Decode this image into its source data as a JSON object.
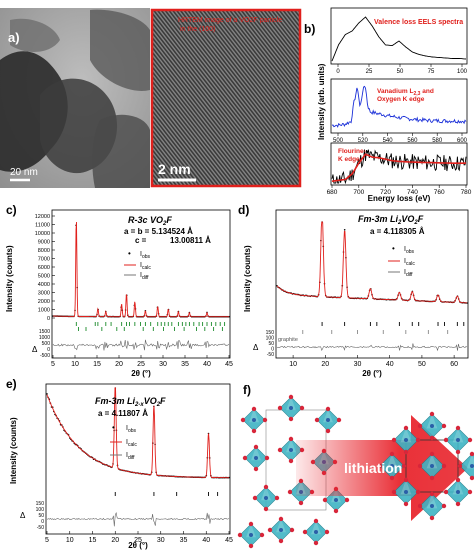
{
  "panel_labels": {
    "a": "a)",
    "b": "b)",
    "c": "c)",
    "d": "d)",
    "e": "e)",
    "f": "f)"
  },
  "panel_a": {
    "scalebar_left": "20 nm",
    "scalebar_right": "2 nm",
    "hrtem_caption_line1": "HRTEM image of a VO2F particle",
    "hrtem_caption_line2": "in the (100)",
    "colors": {
      "inset_border": "#e0201c"
    }
  },
  "panel_b": {
    "ylabel": "Intensity (arb. units)",
    "xlabel": "Energy loss (eV)",
    "xticks": [
      "680",
      "700",
      "720",
      "740",
      "760",
      "780"
    ],
    "top": {
      "xticks": [
        "0",
        "25",
        "50",
        "75",
        "100"
      ],
      "label": "Valence loss EELS spectra",
      "color": "#000000",
      "label_color": "#e0201c"
    },
    "mid": {
      "xticks": [
        "500",
        "520",
        "540",
        "560",
        "580",
        "600"
      ],
      "label_line1": "Vanadium L",
      "label_sub": "2,3",
      "label_line2": " and",
      "label_line3": "Oxygen K edge",
      "color": "#1a2fd8",
      "label_color": "#e0201c"
    },
    "bottom": {
      "label_line1": "Flourine-",
      "label_line2": "K edge",
      "color": "#000000",
      "fit_color": "#e0201c"
    }
  },
  "panel_c": {
    "phase": "R-3c VO",
    "phase_sub": "2",
    "phase_tail": "F",
    "lattice_a": "a = b = 5.134524 Å",
    "lattice_c_label": "c =",
    "lattice_c": "13.00811 Å",
    "legend": [
      "I",
      "I",
      "I"
    ],
    "legend_subs": [
      "obs",
      "calc",
      "diff"
    ],
    "ylabel": "Intensity (counts)",
    "xlabel": "2θ (°)",
    "yticks": [
      "0",
      "1000",
      "2000",
      "3000",
      "4000",
      "5000",
      "6000",
      "7000",
      "8000",
      "9000",
      "10000",
      "11000",
      "12000"
    ],
    "xticks": [
      "5",
      "10",
      "15",
      "20",
      "25",
      "30",
      "35",
      "40",
      "45"
    ],
    "diff_ticks": [
      "1500",
      "1000",
      "500",
      "0",
      "-500"
    ],
    "delta": "Δ"
  },
  "panel_d": {
    "phase": "Fm-3m Li",
    "phase_sub1": "2",
    "phase_mid": "VO",
    "phase_sub2": "2",
    "phase_tail": "F",
    "lattice_a": "a = 4.118305 Å",
    "legend_subs": [
      "obs",
      "calc",
      "diff"
    ],
    "legend": [
      "I",
      "I",
      "I"
    ],
    "ylabel": "Intensity (counts)",
    "xlabel": "2θ (°)",
    "xticks": [
      "10",
      "20",
      "30",
      "40",
      "50",
      "60"
    ],
    "diff_ticks": [
      "150",
      "100",
      "50",
      "0",
      "-50"
    ],
    "graphite_label": "graphite",
    "delta": "Δ"
  },
  "panel_e": {
    "phase": "Fm-3m Li",
    "phase_sub1": "2-x",
    "phase_mid": "VO",
    "phase_sub2": "2",
    "phase_tail": "F",
    "lattice_a": "a = 4.11807 Å",
    "legend": [
      "I",
      "I",
      "I"
    ],
    "legend_subs": [
      "obs",
      "calc",
      "diff"
    ],
    "ylabel": "Intensity (counts)",
    "xlabel": "2θ (°)",
    "xticks": [
      "5",
      "10",
      "15",
      "20",
      "25",
      "30",
      "35",
      "40",
      "45"
    ],
    "diff_ticks": [
      "150",
      "100",
      "50",
      "0",
      "-50"
    ],
    "delta": "Δ"
  },
  "panel_f": {
    "arrow_label": "lithiation",
    "colors": {
      "octahedra": "#3fb4c4",
      "oxygen": "#d8263a",
      "arrow": "#e8262e"
    }
  },
  "chart_data": [
    {
      "type": "line",
      "panel": "b-top",
      "x": [
        0,
        5,
        10,
        15,
        20,
        25,
        30,
        35,
        40,
        45,
        50,
        55,
        60,
        65,
        70,
        75,
        80,
        85,
        90,
        95,
        100
      ],
      "y": [
        0.02,
        0.35,
        0.55,
        0.62,
        0.78,
        0.9,
        0.72,
        0.5,
        0.34,
        0.33,
        0.42,
        0.3,
        0.2,
        0.15,
        0.12,
        0.1,
        0.09,
        0.08,
        0.07,
        0.07,
        0.06
      ],
      "xlim": [
        0,
        100
      ],
      "series": [
        {
          "name": "Valence loss EELS spectra"
        }
      ]
    },
    {
      "type": "line",
      "panel": "b-mid",
      "x": [
        500,
        505,
        510,
        512,
        515,
        517,
        519,
        521,
        523,
        525,
        528,
        531,
        534,
        538,
        543,
        550,
        560,
        570,
        580,
        590,
        600
      ],
      "y": [
        0.1,
        0.12,
        0.18,
        0.55,
        0.9,
        0.45,
        0.8,
        0.95,
        0.5,
        0.38,
        0.36,
        0.34,
        0.33,
        0.3,
        0.28,
        0.25,
        0.22,
        0.2,
        0.19,
        0.19,
        0.18
      ],
      "xlim": [
        495,
        600
      ],
      "series": [
        {
          "name": "Vanadium L2,3 and Oxygen K edge"
        }
      ]
    },
    {
      "type": "line",
      "panel": "b-bottom",
      "x": [
        680,
        690,
        695,
        700,
        705,
        710,
        715,
        720,
        725,
        730,
        740,
        750,
        760,
        770,
        780
      ],
      "y": [
        0.05,
        0.1,
        0.25,
        0.55,
        0.8,
        0.72,
        0.7,
        0.66,
        0.62,
        0.6,
        0.58,
        0.57,
        0.56,
        0.55,
        0.55
      ],
      "xlim": [
        680,
        780
      ],
      "series": [
        {
          "name": "Flourine-K edge"
        }
      ]
    },
    {
      "type": "line",
      "panel": "c",
      "xlim": [
        5,
        45
      ],
      "ylim": [
        0,
        12000
      ],
      "peaks": [
        [
          10.3,
          11500
        ],
        [
          15.2,
          900
        ],
        [
          17.0,
          600
        ],
        [
          20.6,
          1500
        ],
        [
          21.7,
          2700
        ],
        [
          23.6,
          1800
        ],
        [
          26.0,
          700
        ],
        [
          28.8,
          1200
        ],
        [
          31.2,
          900
        ],
        [
          33.5,
          600
        ],
        [
          36.0,
          500
        ],
        [
          40.0,
          500
        ]
      ],
      "series": [
        {
          "name": "Iobs"
        },
        {
          "name": "Icalc"
        },
        {
          "name": "Idiff"
        }
      ]
    },
    {
      "type": "line",
      "panel": "d",
      "xlim": [
        5,
        64
      ],
      "peaks": [
        [
          19,
          1850
        ],
        [
          26,
          1500
        ],
        [
          34,
          230
        ],
        [
          43,
          170
        ],
        [
          47,
          200
        ],
        [
          55,
          150
        ],
        [
          61,
          140
        ]
      ],
      "series": [
        {
          "name": "Iobs"
        },
        {
          "name": "Icalc"
        },
        {
          "name": "Idiff"
        }
      ]
    },
    {
      "type": "line",
      "panel": "e",
      "xlim": [
        5,
        45
      ],
      "peaks": [
        [
          20,
          620
        ],
        [
          28.5,
          520
        ],
        [
          40.5,
          330
        ]
      ],
      "series": [
        {
          "name": "Iobs"
        },
        {
          "name": "Icalc"
        },
        {
          "name": "Idiff"
        }
      ]
    }
  ]
}
